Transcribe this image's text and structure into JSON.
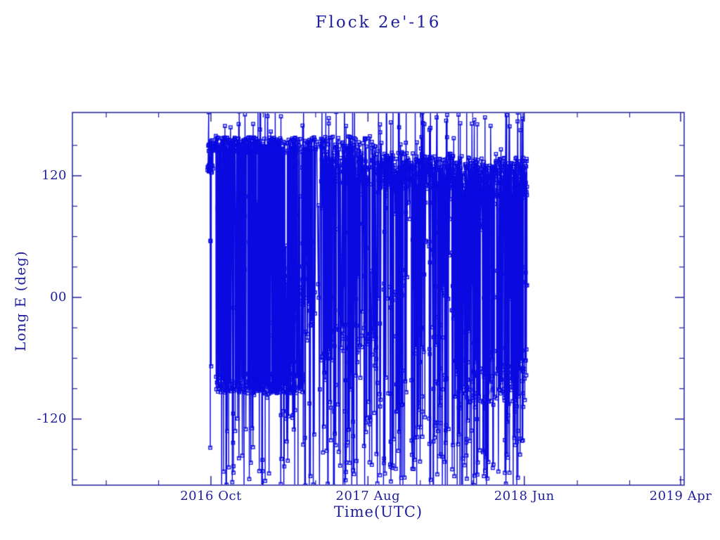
{
  "chart_data": {
    "type": "line",
    "title": "Flock 2e'-16",
    "xlabel": "Time(UTC)",
    "ylabel": "Long E (deg)",
    "x_tick_labels": [
      "2016 Oct",
      "2017 Aug",
      "2018 Jun",
      "2019 Apr"
    ],
    "x_minor_divisions": 3,
    "y_tick_labels": [
      "120",
      "00",
      "-120"
    ],
    "y_tick_values": [
      120,
      0,
      -120
    ],
    "y_minor_tick_values": [
      150,
      90,
      60,
      30,
      -30,
      -60,
      -90,
      -150,
      -180
    ],
    "ylim": [
      -185,
      182
    ],
    "xlim_note": "x axis spans about 2016 Jan to 2019 Apr; labeled major ticks every 10 months",
    "grid": false,
    "legend": null,
    "marker": "open-square",
    "line_style": "solid",
    "colors": {
      "data": "#0a0ae0",
      "axes_text": "#20209c",
      "background": "#ffffff"
    },
    "data_time_extent": [
      "2016 Sep (just before the 2016 Oct tick)",
      "2018 Jun (data stops at the 2018 Jun tick)"
    ],
    "description": "Sub-satellite longitude (deg E) versus time for cubesat Flock 2e'-16. Longitude repeatedly wraps through +/-180 deg producing dense near-vertical line segments spanning the full plot height, with small open-square markers. Dwell bands: ~+150 deg and ~-85 deg from late 2016 to spring 2017, a short band near 0/-10 deg in early 2017, then a broad dense band around +110 to +140 deg from mid 2017 until the record ends in June 2018, plus a weaker band near -85 deg in 2018. No data before Sep 2016 or after mid Jun 2018.",
    "series_spec": {
      "seed": 1337,
      "excursion_range": [
        -205,
        200
      ],
      "phases": [
        {
          "t0": 0.2207,
          "t1": 0.232,
          "n": 40,
          "bands": [
            {
              "c": 128,
              "s": 5,
              "w": 0.42
            },
            {
              "c": 150,
              "s": 6,
              "w": 0.4
            }
          ]
        },
        {
          "t0": 0.232,
          "t1": 0.28,
          "n": 180,
          "bands": [
            {
              "c": 151,
              "s": 7,
              "w": 0.5
            },
            {
              "c": -85,
              "s": 9,
              "w": 0.3
            }
          ]
        },
        {
          "t0": 0.28,
          "t1": 0.33,
          "n": 260,
          "bands": [
            {
              "c": 150,
              "s": 8,
              "w": 0.35
            },
            {
              "c": -85,
              "s": 10,
              "w": 0.4
            }
          ]
        },
        {
          "t0": 0.33,
          "t1": 0.377,
          "n": 250,
          "bands": [
            {
              "c": 150,
              "s": 8,
              "w": 0.28
            },
            {
              "c": -85,
              "s": 10,
              "w": 0.3
            },
            {
              "c": -5,
              "s": 22,
              "w": 0.17
            }
          ]
        },
        {
          "t0": 0.377,
          "t1": 0.393,
          "n": 60,
          "bands": [
            {
              "c": 150,
              "s": 7,
              "w": 0.35
            },
            {
              "c": -10,
              "s": 20,
              "w": 0.3
            }
          ]
        },
        {
          "t0": 0.393,
          "t1": 0.406,
          "n": 16,
          "bands": [
            {
              "c": 152,
              "s": 6,
              "w": 0.55
            }
          ]
        },
        {
          "t0": 0.406,
          "t1": 0.5,
          "n": 350,
          "bands": [
            {
              "c": 135,
              "s": 24,
              "w": 0.48
            },
            {
              "c": -45,
              "s": 20,
              "w": 0.12
            }
          ]
        },
        {
          "t0": 0.5,
          "t1": 0.625,
          "n": 520,
          "bands": [
            {
              "c": 125,
              "s": 18,
              "w": 0.55
            }
          ]
        },
        {
          "t0": 0.625,
          "t1": 0.7435,
          "n": 580,
          "bands": [
            {
              "c": 118,
              "s": 20,
              "w": 0.46
            },
            {
              "c": -85,
              "s": 25,
              "w": 0.17
            }
          ]
        }
      ]
    }
  }
}
